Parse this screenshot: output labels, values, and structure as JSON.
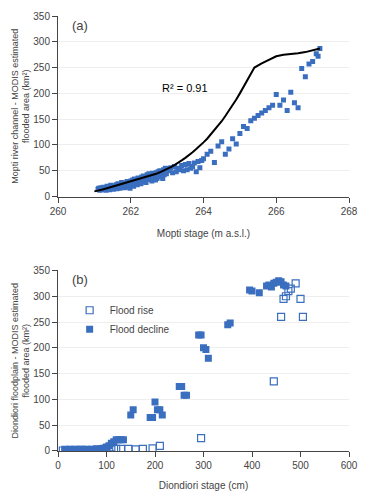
{
  "chart_data": [
    {
      "type": "scatter",
      "title": "(a)",
      "xlabel": "Mopti stage (m a.s.l.)",
      "ylabel": "Mopti river channel - MODIS estimated\nflooded area (km²)",
      "xlim": [
        260,
        268
      ],
      "ylim": [
        0,
        350
      ],
      "xticks": [
        260,
        262,
        264,
        266,
        268
      ],
      "yticks": [
        0,
        50,
        100,
        150,
        200,
        250,
        300,
        350
      ],
      "grid": "y",
      "annotations": [
        {
          "text": "R² = 0.91",
          "x": 262.8,
          "y": 195
        }
      ],
      "series": [
        {
          "type": "scatter",
          "marker": "square",
          "color": "#3A6EBF",
          "x": [
            261.1,
            261.12,
            261.15,
            261.18,
            261.2,
            261.22,
            261.25,
            261.28,
            261.3,
            261.32,
            261.35,
            261.38,
            261.4,
            261.42,
            261.45,
            261.48,
            261.5,
            261.52,
            261.55,
            261.58,
            261.6,
            261.62,
            261.65,
            261.68,
            261.7,
            261.72,
            261.75,
            261.78,
            261.8,
            261.82,
            261.85,
            261.88,
            261.9,
            261.92,
            261.95,
            261.98,
            262.0,
            262.02,
            262.05,
            262.08,
            262.1,
            262.12,
            262.15,
            262.18,
            262.2,
            262.22,
            262.25,
            262.28,
            262.3,
            262.32,
            262.35,
            262.38,
            262.4,
            262.42,
            262.45,
            262.48,
            262.5,
            262.52,
            262.55,
            262.58,
            262.6,
            262.62,
            262.65,
            262.68,
            262.7,
            262.72,
            262.75,
            262.78,
            262.8,
            262.82,
            262.85,
            262.88,
            262.9,
            262.92,
            262.95,
            262.98,
            263.0,
            263.05,
            263.1,
            263.15,
            263.2,
            263.25,
            263.3,
            263.35,
            263.4,
            263.45,
            263.5,
            263.55,
            263.6,
            263.65,
            263.7,
            263.75,
            263.8,
            263.85,
            263.9,
            263.95,
            264.0,
            264.1,
            264.2,
            264.3,
            264.4,
            264.5,
            264.6,
            264.7,
            264.8,
            264.9,
            265.0,
            265.1,
            265.2,
            265.3,
            265.4,
            265.5,
            265.6,
            265.7,
            265.8,
            265.9,
            266.0,
            266.1,
            266.2,
            266.3,
            266.4,
            266.5,
            266.6,
            266.7,
            266.8,
            266.9,
            267.0,
            267.1,
            267.15,
            267.2
          ],
          "values": [
            14,
            16,
            12,
            17,
            15,
            13,
            18,
            14,
            16,
            12,
            20,
            15,
            17,
            13,
            22,
            16,
            19,
            14,
            21,
            16,
            23,
            15,
            25,
            18,
            16,
            22,
            27,
            20,
            24,
            17,
            26,
            21,
            29,
            18,
            22,
            16,
            30,
            25,
            32,
            20,
            34,
            27,
            28,
            23,
            36,
            30,
            35,
            25,
            38,
            28,
            40,
            32,
            37,
            27,
            42,
            33,
            44,
            36,
            40,
            30,
            45,
            38,
            42,
            32,
            46,
            35,
            48,
            38,
            50,
            40,
            44,
            35,
            52,
            42,
            55,
            44,
            54,
            50,
            56,
            46,
            58,
            48,
            55,
            52,
            60,
            50,
            62,
            52,
            64,
            55,
            58,
            65,
            48,
            68,
            56,
            70,
            73,
            82,
            88,
            66,
            98,
            106,
            82,
            92,
            112,
            102,
            122,
            136,
            132,
            147,
            152,
            157,
            162,
            167,
            172,
            177,
            198,
            177,
            187,
            167,
            202,
            182,
            172,
            248,
            232,
            257,
            262,
            277,
            272,
            287
          ]
        },
        {
          "type": "line",
          "color": "black",
          "x": [
            261.0,
            261.1,
            261.2,
            261.3,
            261.4,
            261.5,
            261.6,
            261.7,
            261.8,
            261.9,
            262.0,
            262.1,
            262.2,
            262.3,
            262.4,
            262.5,
            262.6,
            262.7,
            262.8,
            262.9,
            263.0,
            263.1,
            263.2,
            263.3,
            263.4,
            263.5,
            263.6,
            263.7,
            263.8,
            263.9,
            264.0,
            264.1,
            264.2,
            264.3,
            264.4,
            264.5,
            264.6,
            264.7,
            264.8,
            264.9,
            265.0,
            265.2,
            265.4,
            265.6,
            265.8,
            266.0,
            266.2,
            266.4,
            266.6,
            266.8,
            267.0,
            267.2
          ],
          "values": [
            10,
            11,
            13,
            15,
            17,
            19,
            21,
            23,
            25,
            27,
            29,
            31,
            33,
            35,
            37,
            39,
            42,
            44,
            47,
            50,
            53,
            57,
            61,
            65,
            70,
            75,
            80,
            86,
            92,
            98,
            105,
            112,
            120,
            128,
            137,
            146,
            156,
            166,
            177,
            188,
            200,
            225,
            250,
            258,
            265,
            272,
            275,
            276,
            278,
            280,
            283,
            287
          ]
        }
      ]
    },
    {
      "type": "scatter",
      "title": "(b)",
      "xlabel": "Diondiori stage (cm)",
      "ylabel": "Diondiori floodplain - MODIS estimated\nflooded area (km²)",
      "xlim": [
        0,
        600
      ],
      "ylim": [
        0,
        350
      ],
      "xticks": [
        0,
        100,
        200,
        300,
        400,
        500,
        600
      ],
      "yticks": [
        0,
        50,
        100,
        150,
        200,
        250,
        300,
        350
      ],
      "grid": "y",
      "legend": "upper left",
      "series": [
        {
          "name": "Flood decline",
          "type": "scatter",
          "marker": "square",
          "color": "#3A6EBF",
          "x": [
            15,
            20,
            25,
            30,
            35,
            40,
            45,
            50,
            55,
            60,
            65,
            70,
            75,
            80,
            85,
            90,
            95,
            100,
            105,
            110,
            115,
            120,
            125,
            130,
            135,
            150,
            155,
            190,
            195,
            200,
            205,
            210,
            215,
            250,
            255,
            260,
            265,
            290,
            295,
            300,
            305,
            310,
            350,
            355,
            395,
            400,
            415,
            430,
            435,
            440,
            445,
            450,
            455,
            460,
            465,
            470
          ],
          "values": [
            1,
            2,
            1,
            2,
            1,
            2,
            1,
            2,
            1,
            3,
            2,
            2,
            1,
            2,
            1,
            3,
            2,
            8,
            10,
            15,
            18,
            22,
            22,
            22,
            22,
            70,
            80,
            65,
            65,
            95,
            80,
            80,
            70,
            125,
            125,
            108,
            108,
            225,
            225,
            200,
            197,
            180,
            245,
            248,
            312,
            310,
            307,
            320,
            322,
            318,
            325,
            327,
            330,
            328,
            322,
            320
          ]
        },
        {
          "name": "Flood rise",
          "type": "scatter",
          "marker": "square-open",
          "color": "#3A6EBF",
          "x": [
            10,
            15,
            20,
            25,
            30,
            35,
            40,
            45,
            50,
            55,
            60,
            65,
            70,
            75,
            80,
            85,
            90,
            95,
            100,
            110,
            120,
            130,
            145,
            160,
            175,
            195,
            210,
            295,
            445,
            460,
            465,
            470,
            475,
            480,
            490,
            500,
            505
          ],
          "values": [
            1,
            2,
            1,
            2,
            1,
            2,
            1,
            2,
            2,
            1,
            2,
            1,
            2,
            1,
            3,
            2,
            3,
            4,
            5,
            7,
            4,
            4,
            4,
            3,
            4,
            5,
            10,
            25,
            135,
            260,
            295,
            300,
            310,
            315,
            325,
            295,
            260
          ]
        }
      ]
    }
  ]
}
